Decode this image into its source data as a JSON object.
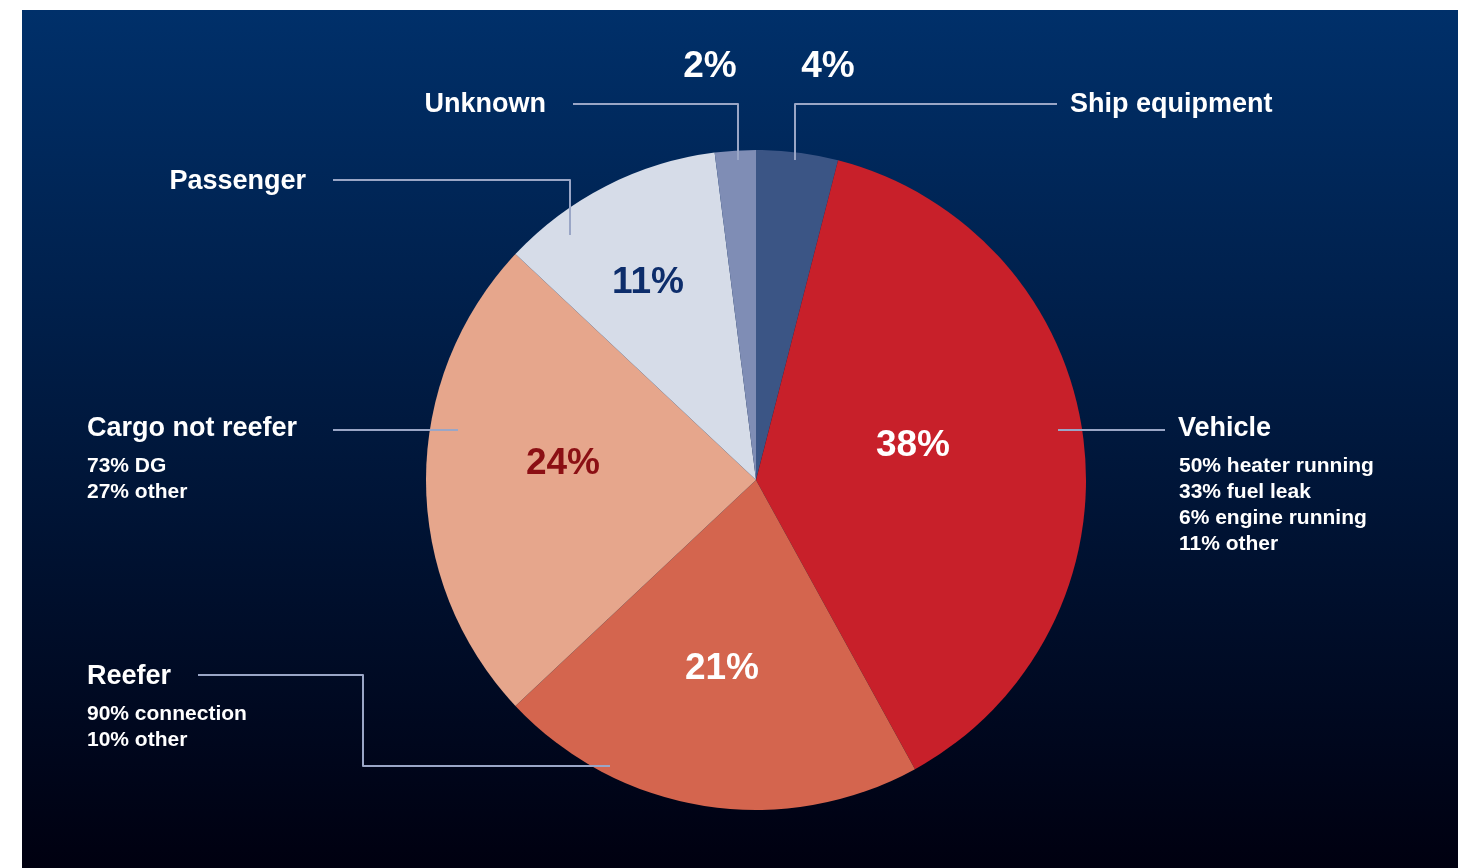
{
  "chart_data": {
    "type": "pie",
    "categories": [
      "Ship equipment",
      "Vehicle",
      "Reefer",
      "Cargo not reefer",
      "Passenger",
      "Unknown"
    ],
    "values": [
      4,
      38,
      21,
      24,
      11,
      2
    ],
    "colors": [
      "#3b5585",
      "#c8202a",
      "#d4654e",
      "#e6a68c",
      "#d6dce8",
      "#7f8db5"
    ],
    "value_labels": [
      "4%",
      "38%",
      "21%",
      "24%",
      "11%",
      "2%"
    ],
    "annotations": [
      "50% heater running",
      "33% fuel leak",
      "6% engine running",
      "11% other",
      "90% connection",
      "10% other",
      "73% DG",
      "27% other"
    ]
  }
}
